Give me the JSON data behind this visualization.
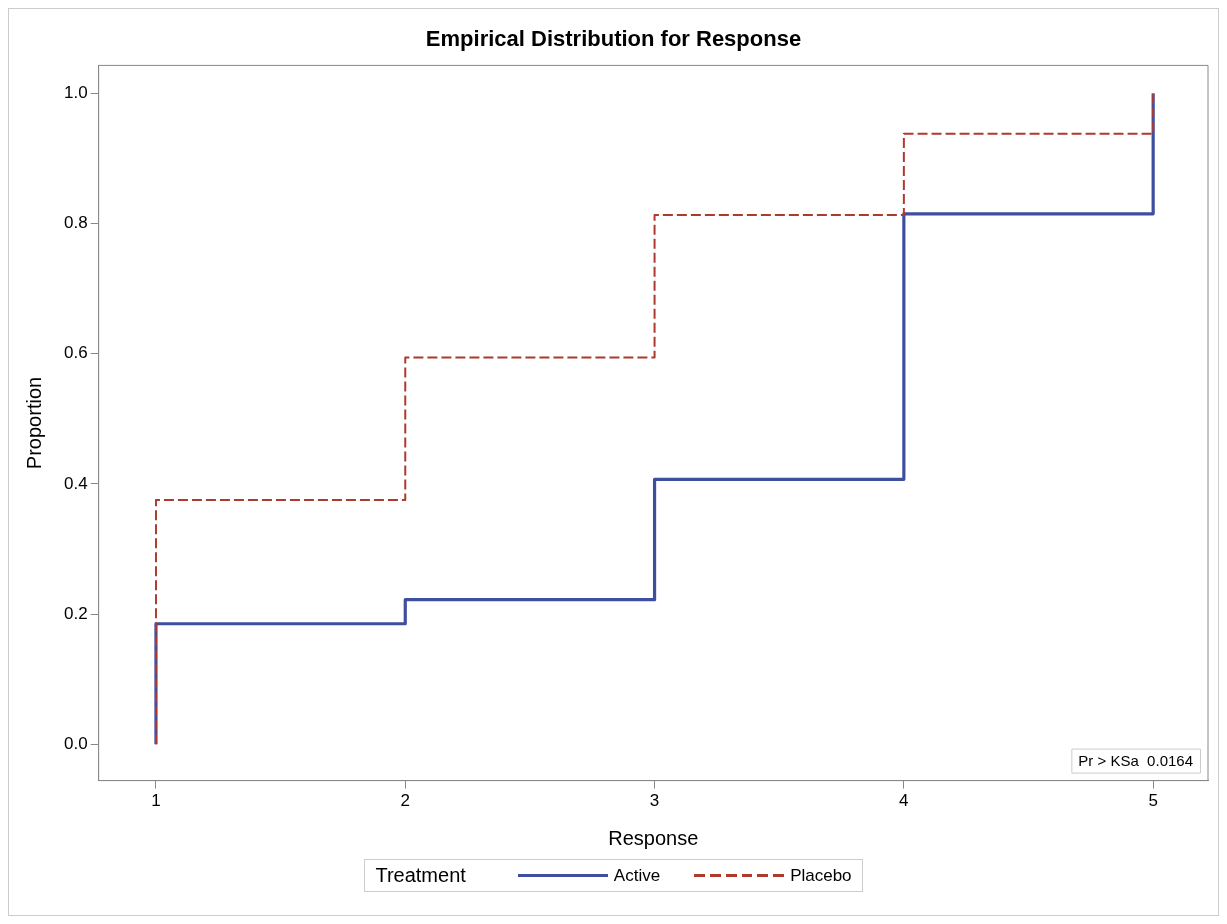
{
  "chart_data": {
    "type": "step",
    "title": "Empirical Distribution for Response",
    "xlabel": "Response",
    "ylabel": "Proportion",
    "legend_title": "Treatment",
    "series": [
      {
        "name": "Active",
        "color": "#3f4f9f",
        "x": [
          1,
          1,
          2,
          3,
          4,
          5
        ],
        "values": [
          0,
          0.185,
          0.222,
          0.407,
          0.815,
          1.0
        ],
        "line_style": "solid"
      },
      {
        "name": "Placebo",
        "color": "#b0392e",
        "x": [
          1,
          1,
          2,
          3,
          4,
          5
        ],
        "values": [
          0,
          0.375,
          0.594,
          0.813,
          0.938,
          1.0
        ],
        "line_style": "dashed"
      }
    ],
    "xlim": [
      0.77,
      5.22
    ],
    "xticks": [
      1,
      2,
      3,
      4,
      5
    ],
    "ylim": [
      -0.056,
      1.043
    ],
    "yticks": [
      {
        "value": 0,
        "label": "0.0"
      },
      {
        "value": 0.2,
        "label": "0.2"
      },
      {
        "value": 0.4,
        "label": "0.4"
      },
      {
        "value": 0.6,
        "label": "0.6"
      },
      {
        "value": 0.8,
        "label": "0.8"
      },
      {
        "value": 1,
        "label": "1.0"
      }
    ],
    "grid": false,
    "legend": "bottom",
    "marker": "none",
    "annotations": [
      "Pr > KSa  0.0164"
    ]
  }
}
